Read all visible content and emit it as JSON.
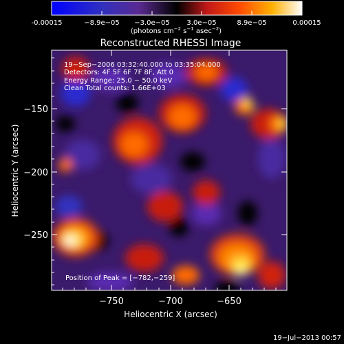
{
  "colorbar": {
    "tick_labels": [
      "-0.00015",
      "−8.9e−05",
      "−3.0e−05",
      "3.0e−05",
      "8.9e−05",
      "0.00015"
    ],
    "unit_prefix": "(photons cm",
    "unit_exp1": "−2",
    "unit_mid": " s",
    "unit_exp2": "−1",
    "unit_mid2": " asec",
    "unit_exp3": "−2",
    "unit_suffix": ")",
    "colors": [
      "#0000ff",
      "#2020c0",
      "#6a2a9a",
      "#000000",
      "#c01818",
      "#ff4a00",
      "#ffa800",
      "#ffff60",
      "#ffffff"
    ]
  },
  "plot": {
    "title": "Reconstructed RHESSI Image",
    "xlabel": "Heliocentric X (arcsec)",
    "ylabel": "Heliocentric Y (arcsec)",
    "xticks": [
      "−750",
      "−700",
      "−650"
    ],
    "yticks": [
      "−150",
      "−200",
      "−250"
    ],
    "info_lines": [
      "19−Sep−2006 03:32:40.000 to 03:35:04.000",
      "Detectors: 4F 5F 6F 7F 8F, Att 0",
      "Energy Range: 25.0 − 50.0 keV",
      "Clean     Total counts: 1.66E+03"
    ],
    "peak_label": "Position of Peak = [−782,−259]"
  },
  "footer": {
    "timestamp": "19−Jul−2013 00:57"
  }
}
